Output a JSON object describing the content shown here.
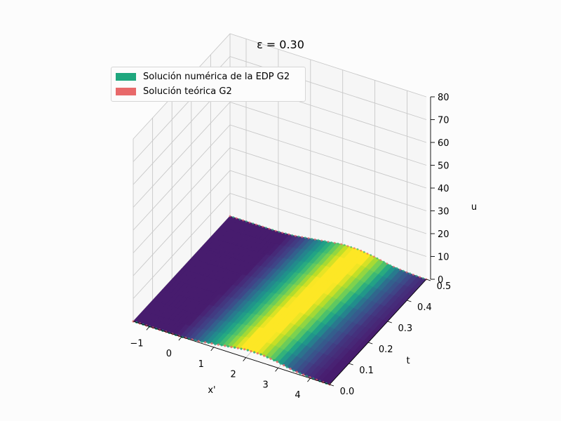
{
  "chart_data": {
    "type": "surface3d",
    "title": "ε = 0.30",
    "xlabel": "x'",
    "ylabel": "t",
    "zlabel": "u",
    "x_ticks": [
      "−1",
      "0",
      "1",
      "2",
      "3",
      "4"
    ],
    "y_ticks": [
      "0.0",
      "0.1",
      "0.2",
      "0.3",
      "0.4",
      "0.5"
    ],
    "z_ticks": [
      "0",
      "10",
      "20",
      "30",
      "40",
      "50",
      "60",
      "70",
      "80"
    ],
    "xlim": [
      -1.5,
      4.6
    ],
    "ylim": [
      0,
      0.5
    ],
    "zlim": [
      0,
      80
    ],
    "grid": true,
    "legend_position": "top-left",
    "legend": [
      {
        "label": "Solución numérica de la EDP G2",
        "color": "#1fa77e"
      },
      {
        "label": "Solución teórica G2",
        "color": "#e8696a"
      }
    ],
    "surface_profile": {
      "x": [
        -1.5,
        -1.0,
        -0.5,
        0.0,
        0.5,
        1.0,
        1.5,
        2.0,
        2.5,
        3.0,
        3.5,
        4.0,
        4.5
      ],
      "u": [
        0,
        0,
        0,
        0,
        0.5,
        1.5,
        2.5,
        3.5,
        3.5,
        2.5,
        1.0,
        0.3,
        0
      ]
    },
    "colormap": "viridis"
  }
}
